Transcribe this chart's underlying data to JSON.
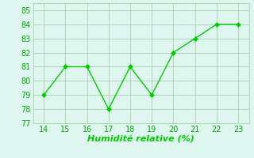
{
  "x": [
    14,
    15,
    16,
    17,
    18,
    19,
    20,
    21,
    22,
    23
  ],
  "y": [
    79,
    81,
    81,
    78,
    81,
    79,
    82,
    83,
    84,
    84
  ],
  "xlabel": "Humidité relative (%)",
  "xlim": [
    13.5,
    23.5
  ],
  "ylim": [
    77,
    85.5
  ],
  "yticks": [
    77,
    78,
    79,
    80,
    81,
    82,
    83,
    84,
    85
  ],
  "xticks": [
    14,
    15,
    16,
    17,
    18,
    19,
    20,
    21,
    22,
    23
  ],
  "line_color": "#00cc00",
  "marker_color": "#00cc00",
  "bg_color": "#dff5f0",
  "grid_color": "#99cc99",
  "xlabel_color": "#00cc00",
  "xlabel_fontsize": 8,
  "tick_fontsize": 7,
  "tick_color": "#00aa00"
}
